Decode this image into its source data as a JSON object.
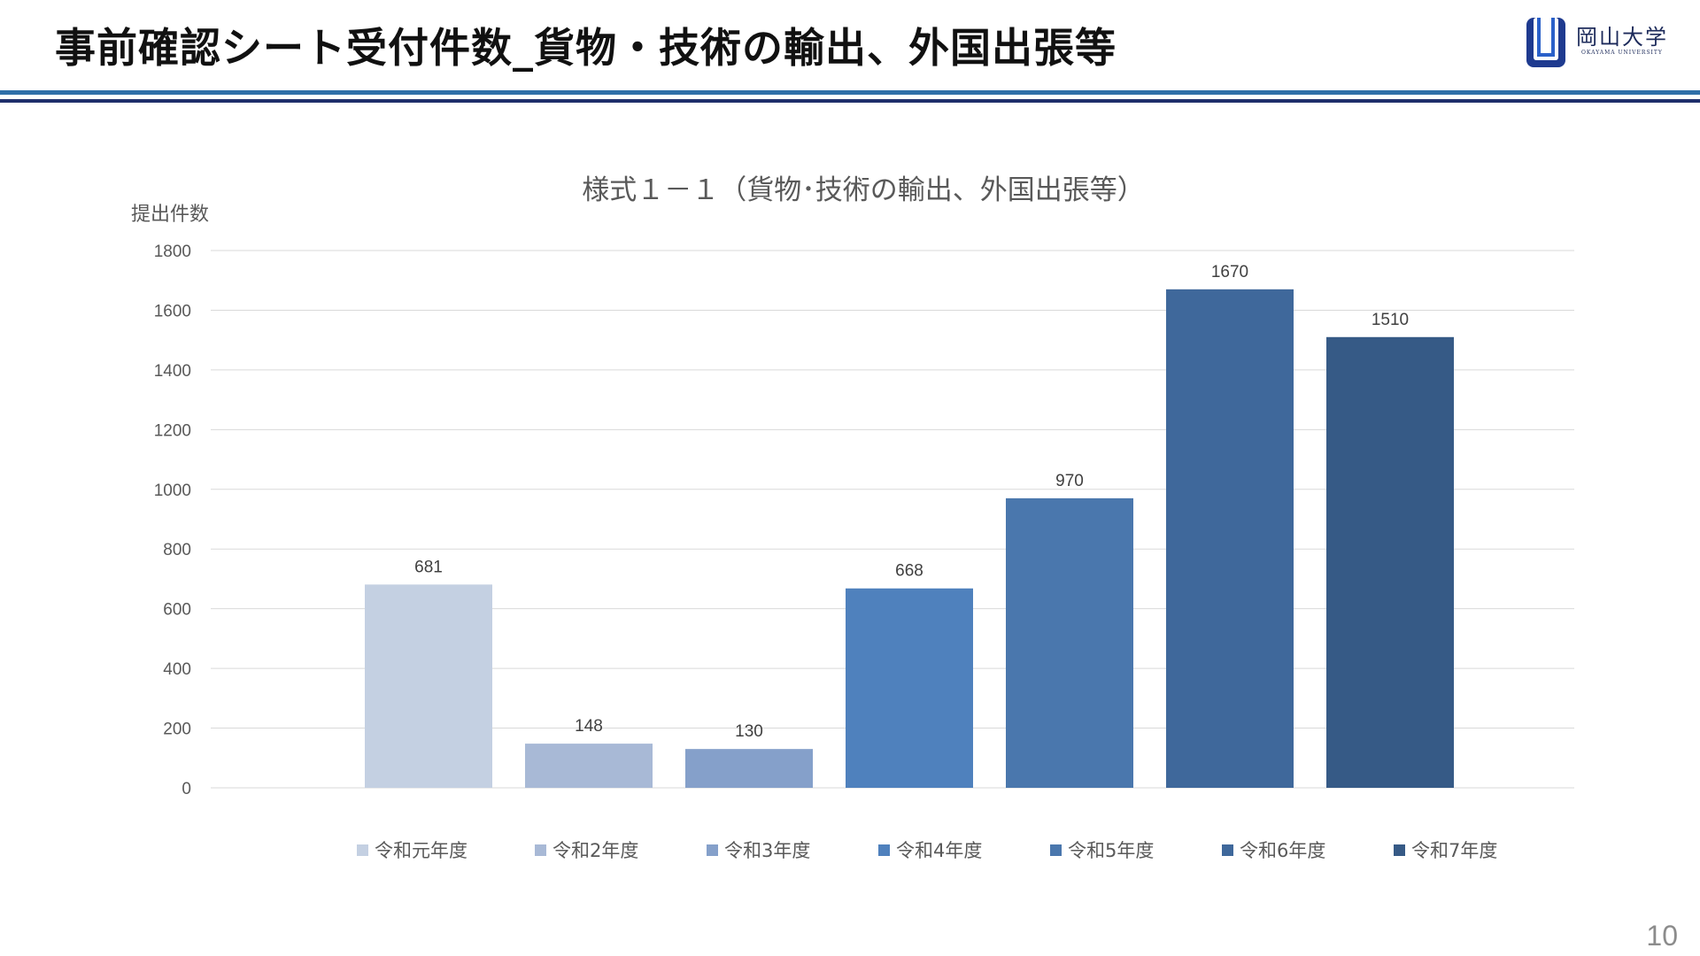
{
  "slide": {
    "title": "事前確認シート受付件数_貨物・技術の輸出、外国出張等",
    "page_number": "10"
  },
  "logo": {
    "name": "岡山大学",
    "subtitle": "OKAYAMA UNIVERSITY"
  },
  "colors": {
    "rule_blue": "#2f6fa8",
    "rule_navy": "#1f2f6b",
    "logo_blue": "#1e3a8f"
  },
  "chart_data": {
    "type": "bar",
    "title": "様式１－１（貨物･技術の輸出、外国出張等）",
    "ylabel": "提出件数",
    "ylim": [
      0,
      1800
    ],
    "yticks": [
      0,
      200,
      400,
      600,
      800,
      1000,
      1200,
      1400,
      1600,
      1800
    ],
    "grid": true,
    "legend_position": "bottom",
    "categories": [
      "令和元年度",
      "令和2年度",
      "令和3年度",
      "令和4年度",
      "令和5年度",
      "令和6年度",
      "令和7年度"
    ],
    "values": [
      681,
      148,
      130,
      668,
      970,
      1670,
      1510
    ],
    "colors": [
      "#c4d0e2",
      "#a8b9d6",
      "#85a0ca",
      "#4f81bd",
      "#4a77ad",
      "#3f689b",
      "#365a86"
    ],
    "data_labels": true
  }
}
